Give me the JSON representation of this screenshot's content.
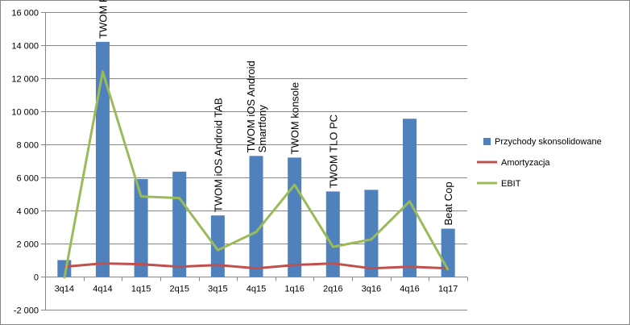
{
  "chart_data": {
    "type": "bar",
    "categories": [
      "3q14",
      "4q14",
      "1q15",
      "2q15",
      "3q15",
      "4q15",
      "1q16",
      "2q16",
      "3q16",
      "4q16",
      "1q17"
    ],
    "ylim": [
      -2000,
      16000
    ],
    "ytick_step": 2000,
    "ytick_labels": [
      "-2 000",
      "0",
      "2 000",
      "4 000",
      "6 000",
      "8 000",
      "10 000",
      "12 000",
      "14 000",
      "16 000"
    ],
    "grid": true,
    "legend_position": "right",
    "series": [
      {
        "name": "Przychody skonsolidowane",
        "kind": "bar",
        "color": "#4f81bd",
        "values": [
          1000,
          14200,
          5900,
          6350,
          3700,
          7300,
          7200,
          5150,
          5250,
          9550,
          2900
        ]
      },
      {
        "name": "Amortyzacja",
        "kind": "line",
        "color": "#c0504d",
        "values": [
          600,
          800,
          750,
          600,
          700,
          500,
          700,
          800,
          500,
          600,
          500
        ]
      },
      {
        "name": "EBIT",
        "kind": "line",
        "color": "#9bbb59",
        "values": [
          -100,
          12400,
          4850,
          4750,
          1600,
          2700,
          5550,
          1800,
          2250,
          4550,
          400
        ]
      }
    ],
    "annotations": [
      {
        "category": "4q14",
        "lines": [
          "TWOM PC"
        ]
      },
      {
        "category": "3q15",
        "lines": [
          "TWOM iOS Android TAB"
        ]
      },
      {
        "category": "4q15",
        "lines": [
          "TWOM iOS Android",
          "Smartfony"
        ]
      },
      {
        "category": "1q16",
        "lines": [
          "TWOM konsole"
        ]
      },
      {
        "category": "2q16",
        "lines": [
          "TWOM TLO  PC"
        ]
      },
      {
        "category": "1q17",
        "lines": [
          "Beat Cop"
        ]
      }
    ]
  }
}
